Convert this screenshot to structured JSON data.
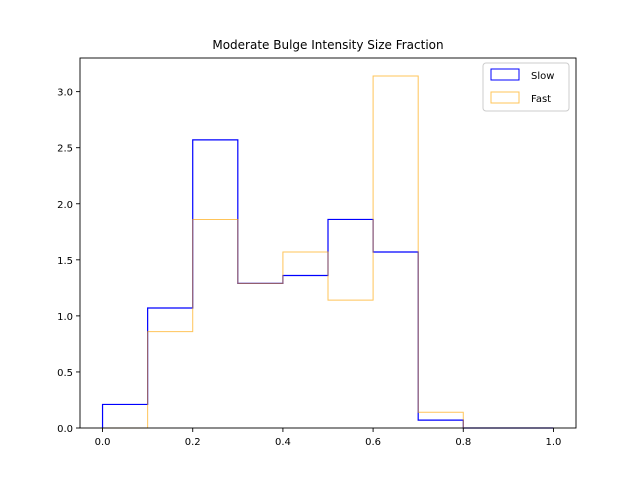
{
  "chart_data": {
    "type": "histogram",
    "title": "Moderate Bulge Intensity Size Fraction",
    "xlabel": "",
    "ylabel": "",
    "xlim": [
      -0.05,
      1.05
    ],
    "ylim": [
      0,
      3.3
    ],
    "x_ticks": [
      "0.0",
      "0.2",
      "0.4",
      "0.6",
      "0.8",
      "1.0"
    ],
    "y_ticks": [
      "0.0",
      "0.5",
      "1.0",
      "1.5",
      "2.0",
      "2.5",
      "3.0"
    ],
    "bin_edges": [
      0.0,
      0.1,
      0.2,
      0.3,
      0.4,
      0.5,
      0.6,
      0.7,
      0.8,
      0.9,
      1.0
    ],
    "grid": false,
    "legend_position": "top-right",
    "series": [
      {
        "name": "Slow",
        "color": "#0000ff",
        "values": [
          0.21,
          1.07,
          2.57,
          1.29,
          1.36,
          1.86,
          1.57,
          0.07,
          0.0,
          0.0
        ]
      },
      {
        "name": "Fast",
        "color": "#ffa500",
        "values": [
          0.0,
          0.86,
          1.86,
          1.29,
          1.57,
          1.14,
          3.14,
          0.14,
          0.0,
          0.0
        ]
      }
    ]
  }
}
